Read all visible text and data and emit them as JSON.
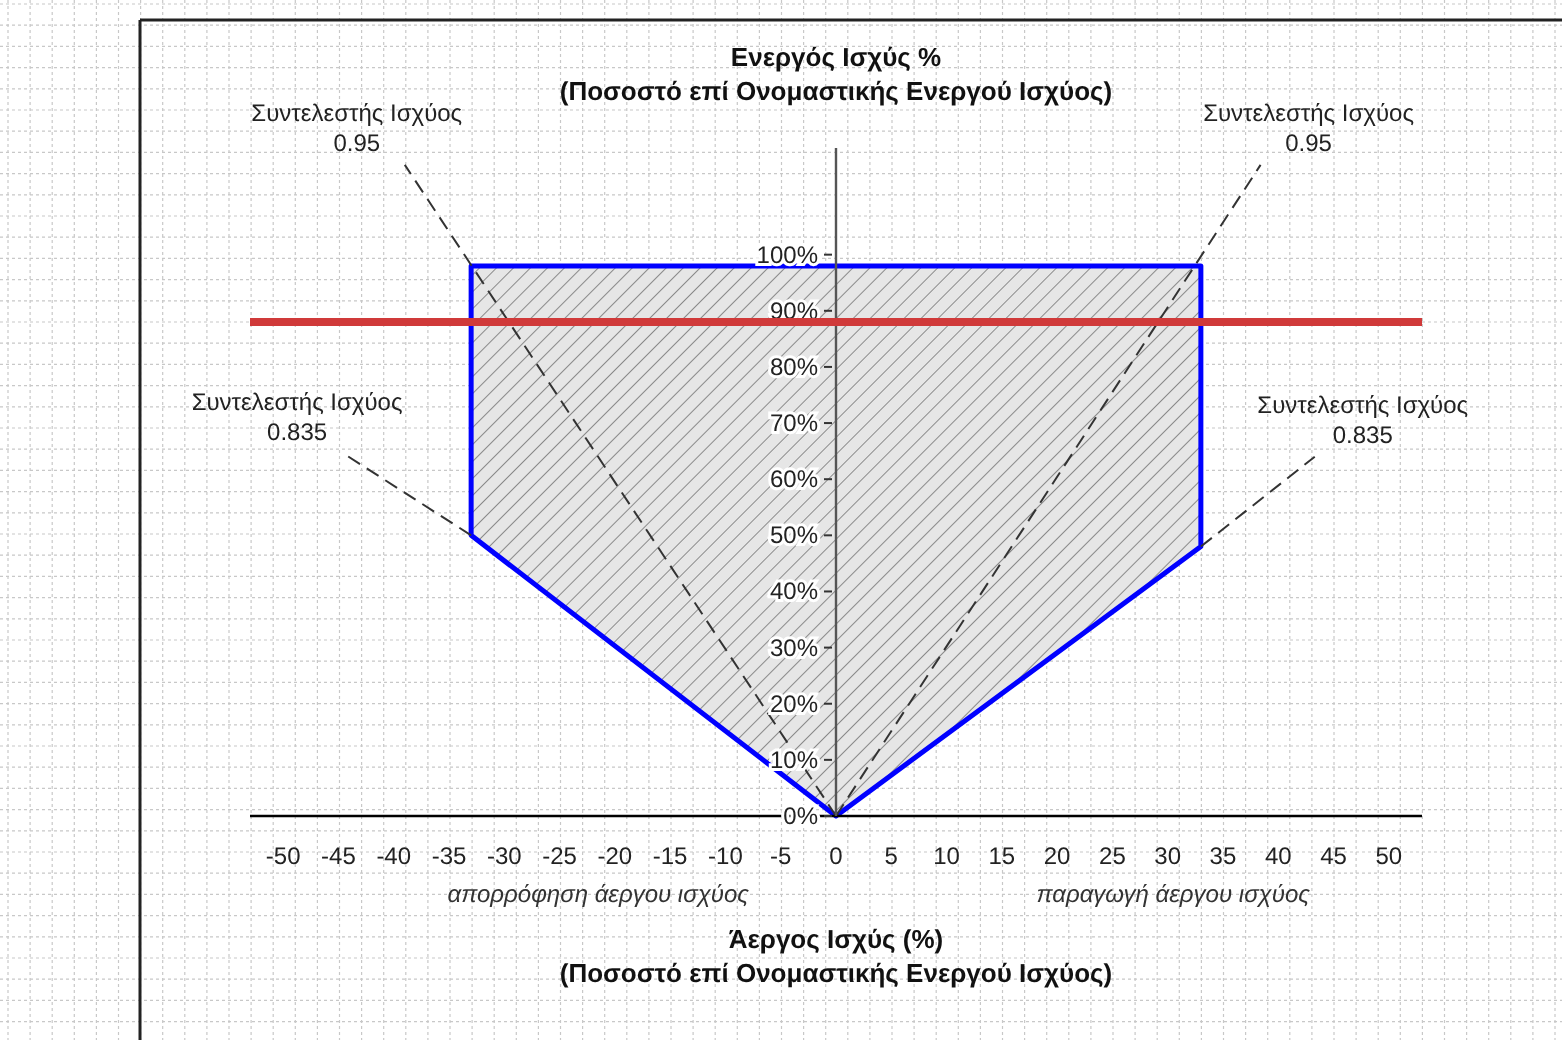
{
  "chart_data": {
    "type": "area",
    "ylabel": "Ενεργός Ισχύς %\n(Ποσοστό επί Ονομαστικής Ενεργού Ισχύος)",
    "xlabel": "Άεργος Ισχύς (%)\n(Ποσοστό επί Ονομαστικής Ενεργού Ισχύος)",
    "xlim": [
      -53,
      53
    ],
    "ylim": [
      0,
      119
    ],
    "xticks": [
      -50,
      -45,
      -40,
      -35,
      -30,
      -25,
      -20,
      -15,
      -10,
      -5,
      0,
      5,
      10,
      15,
      20,
      25,
      30,
      35,
      40,
      45,
      50
    ],
    "yticks": [
      {
        "value": 0,
        "label": "0%"
      },
      {
        "value": 10,
        "label": "10%"
      },
      {
        "value": 20,
        "label": "20%"
      },
      {
        "value": 30,
        "label": "30%"
      },
      {
        "value": 40,
        "label": "40%"
      },
      {
        "value": 50,
        "label": "50%"
      },
      {
        "value": 60,
        "label": "60%"
      },
      {
        "value": 70,
        "label": "70%"
      },
      {
        "value": 80,
        "label": "80%"
      },
      {
        "value": 90,
        "label": "90%"
      },
      {
        "value": 100,
        "label": "100%"
      }
    ],
    "series": [
      {
        "type": "area",
        "color": "#0000ff",
        "x": [
          0,
          -33,
          -33,
          33,
          33,
          0
        ],
        "values": [
          0,
          50,
          98,
          98,
          48,
          0
        ]
      },
      {
        "type": "line",
        "color": "#333333",
        "line_style": "dashed",
        "x": [
          0,
          -39
        ],
        "values": [
          0,
          116
        ]
      },
      {
        "type": "line",
        "color": "#333333",
        "line_style": "dashed",
        "x": [
          0,
          38.4
        ],
        "values": [
          0,
          116
        ]
      },
      {
        "type": "line",
        "color": "#333333",
        "line_style": "dashed",
        "x": [
          -33,
          -44.4
        ],
        "values": [
          50,
          64.4
        ]
      },
      {
        "type": "line",
        "color": "#333333",
        "line_style": "dashed",
        "x": [
          33,
          43.3
        ],
        "values": [
          48,
          64
        ]
      }
    ],
    "ref_lines": [
      {
        "axis": "y",
        "value": 88,
        "color": "#d03a3a"
      }
    ],
    "annotations": [
      {
        "text": "Συντελεστής Ισχύος\n0.95",
        "x": -39,
        "y": 116
      },
      {
        "text": "Συντελεστής Ισχύος\n0.95",
        "x": 38.4,
        "y": 116
      },
      {
        "text": "Συντελεστής Ισχύος\n0.835",
        "x": -44.4,
        "y": 64.4
      },
      {
        "text": "Συντελεστής Ισχύος\n0.835",
        "x": 43.3,
        "y": 64
      },
      "απορρόφηση άεργου ισχύος",
      "παραγωγή άεργου ισχύος"
    ],
    "grid": true
  }
}
